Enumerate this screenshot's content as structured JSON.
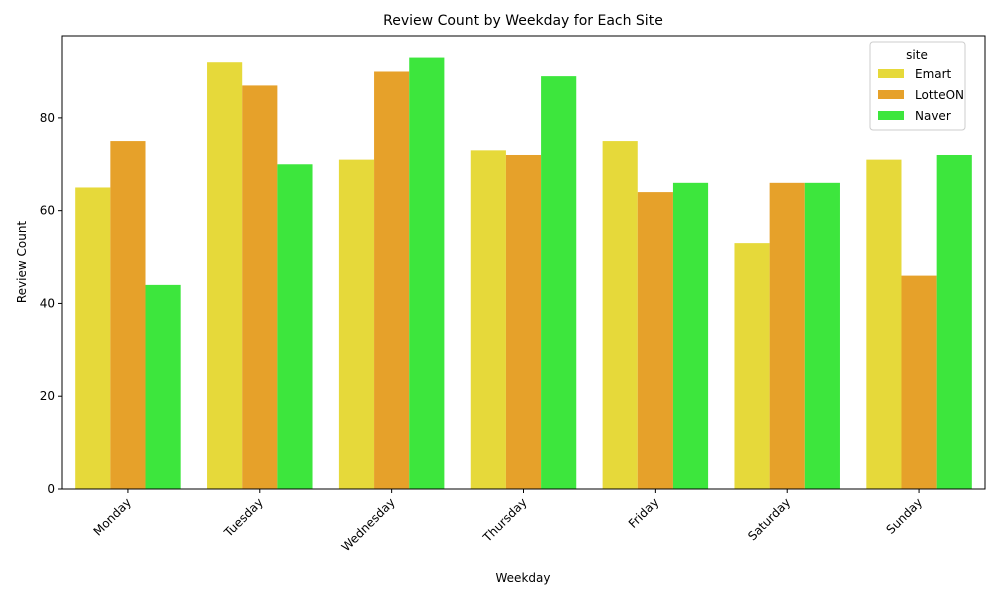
{
  "chart_data": {
    "type": "bar",
    "title": "Review Count by Weekday for Each Site",
    "xlabel": "Weekday",
    "ylabel": "Review Count",
    "categories": [
      "Monday",
      "Tuesday",
      "Wednesday",
      "Thursday",
      "Friday",
      "Saturday",
      "Sunday"
    ],
    "series": [
      {
        "name": "Emart",
        "color": "#e6d93a",
        "values": [
          65,
          92,
          71,
          73,
          75,
          53,
          71
        ]
      },
      {
        "name": "LotteON",
        "color": "#e6a12a",
        "values": [
          75,
          87,
          90,
          72,
          64,
          66,
          46
        ]
      },
      {
        "name": "Naver",
        "color": "#3de63d",
        "values": [
          44,
          70,
          93,
          89,
          66,
          66,
          72
        ]
      }
    ],
    "ylim": [
      0,
      97.65
    ],
    "yticks": [
      0,
      20,
      40,
      60,
      80
    ],
    "legend": {
      "title": "site",
      "placement": "top-right"
    },
    "grid": false
  }
}
